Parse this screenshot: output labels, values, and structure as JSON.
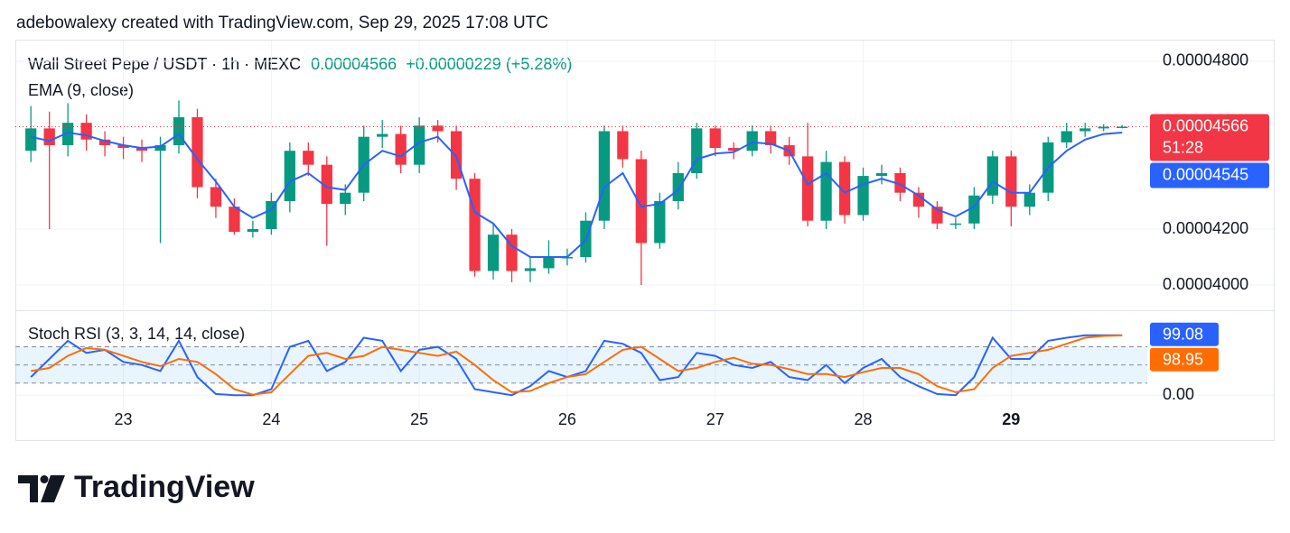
{
  "attribution": "adebowalexy created with TradingView.com, Sep 29, 2025 17:08 UTC",
  "chart_data": [
    {
      "type": "candlestick",
      "title": "Wall Street Pepe / USDT · 1h · MEXC",
      "price": "0.00004566",
      "change": "+0.00000229 (+5.28%)",
      "up_color": "#089981",
      "down_color": "#f23645",
      "x": [
        22.375,
        22.5,
        22.625,
        22.75,
        22.875,
        23,
        23.125,
        23.25,
        23.375,
        23.5,
        23.625,
        23.75,
        23.875,
        24,
        24.125,
        24.25,
        24.375,
        24.5,
        24.625,
        24.75,
        24.875,
        25,
        25.125,
        25.25,
        25.375,
        25.5,
        25.625,
        25.75,
        25.875,
        26,
        26.125,
        26.25,
        26.375,
        26.5,
        26.625,
        26.75,
        26.875,
        27,
        27.125,
        27.25,
        27.375,
        27.5,
        27.625,
        27.75,
        27.875,
        28,
        28.125,
        28.25,
        28.375,
        28.5,
        28.625,
        28.75,
        28.875,
        29,
        29.125,
        29.25,
        29.375,
        29.5,
        29.625,
        29.75
      ],
      "open": [
        4.48e-05,
        4.56e-05,
        4.5e-05,
        4.58e-05,
        4.52e-05,
        4.5e-05,
        4.49e-05,
        4.48e-05,
        4.5e-05,
        4.6e-05,
        4.35e-05,
        4.28e-05,
        4.19e-05,
        4.2e-05,
        4.3e-05,
        4.48e-05,
        4.43e-05,
        4.29e-05,
        4.33e-05,
        4.53e-05,
        4.54e-05,
        4.43e-05,
        4.57e-05,
        4.55e-05,
        4.38e-05,
        4.05e-05,
        4.18e-05,
        4.05e-05,
        4.06e-05,
        4.1e-05,
        4.1e-05,
        4.23e-05,
        4.55e-05,
        4.45e-05,
        4.15e-05,
        4.3e-05,
        4.4e-05,
        4.56e-05,
        4.49e-05,
        4.48e-05,
        4.55e-05,
        4.5e-05,
        4.46e-05,
        4.23e-05,
        4.44e-05,
        4.25e-05,
        4.39e-05,
        4.4e-05,
        4.33e-05,
        4.28e-05,
        4.22e-05,
        4.22e-05,
        4.32e-05,
        4.46e-05,
        4.28e-05,
        4.33e-05,
        4.51e-05,
        4.55e-05,
        4.56e-05,
        4.566e-05
      ],
      "high": [
        4.64e-05,
        4.62e-05,
        4.65e-05,
        4.61e-05,
        4.55e-05,
        4.53e-05,
        4.52e-05,
        4.53e-05,
        4.66e-05,
        4.63e-05,
        4.38e-05,
        4.31e-05,
        4.23e-05,
        4.33e-05,
        4.51e-05,
        4.51e-05,
        4.46e-05,
        4.36e-05,
        4.57e-05,
        4.59e-05,
        4.57e-05,
        4.6e-05,
        4.59e-05,
        4.57e-05,
        4.4e-05,
        4.22e-05,
        4.2e-05,
        4.1e-05,
        4.16e-05,
        4.13e-05,
        4.26e-05,
        4.57e-05,
        4.57e-05,
        4.48e-05,
        4.33e-05,
        4.44e-05,
        4.58e-05,
        4.57e-05,
        4.51e-05,
        4.57e-05,
        4.57e-05,
        4.53e-05,
        4.58e-05,
        4.48e-05,
        4.46e-05,
        4.42e-05,
        4.43e-05,
        4.42e-05,
        4.35e-05,
        4.3e-05,
        4.24e-05,
        4.35e-05,
        4.48e-05,
        4.48e-05,
        4.36e-05,
        4.53e-05,
        4.58e-05,
        4.58e-05,
        4.575e-05,
        4.572e-05
      ],
      "low": [
        4.44e-05,
        4.2e-05,
        4.46e-05,
        4.48e-05,
        4.46e-05,
        4.45e-05,
        4.44e-05,
        4.15e-05,
        4.47e-05,
        4.31e-05,
        4.24e-05,
        4.18e-05,
        4.17e-05,
        4.18e-05,
        4.26e-05,
        4.39e-05,
        4.14e-05,
        4.25e-05,
        4.3e-05,
        4.49e-05,
        4.4e-05,
        4.4e-05,
        4.51e-05,
        4.34e-05,
        4.03e-05,
        4.02e-05,
        4.01e-05,
        4.01e-05,
        4.04e-05,
        4.07e-05,
        4.08e-05,
        4.2e-05,
        4.42e-05,
        4e-05,
        4.13e-05,
        4.27e-05,
        4.38e-05,
        4.46e-05,
        4.45e-05,
        4.46e-05,
        4.47e-05,
        4.43e-05,
        4.21e-05,
        4.2e-05,
        4.22e-05,
        4.23e-05,
        4.36e-05,
        4.3e-05,
        4.24e-05,
        4.2e-05,
        4.2e-05,
        4.2e-05,
        4.29e-05,
        4.21e-05,
        4.25e-05,
        4.3e-05,
        4.49e-05,
        4.53e-05,
        4.55e-05,
        4.56e-05
      ],
      "close": [
        4.56e-05,
        4.5e-05,
        4.58e-05,
        4.52e-05,
        4.5e-05,
        4.49e-05,
        4.48e-05,
        4.5e-05,
        4.6e-05,
        4.35e-05,
        4.28e-05,
        4.19e-05,
        4.2e-05,
        4.3e-05,
        4.48e-05,
        4.43e-05,
        4.29e-05,
        4.33e-05,
        4.53e-05,
        4.54e-05,
        4.43e-05,
        4.57e-05,
        4.55e-05,
        4.38e-05,
        4.05e-05,
        4.18e-05,
        4.05e-05,
        4.06e-05,
        4.1e-05,
        4.1e-05,
        4.23e-05,
        4.55e-05,
        4.45e-05,
        4.15e-05,
        4.3e-05,
        4.4e-05,
        4.56e-05,
        4.49e-05,
        4.48e-05,
        4.55e-05,
        4.5e-05,
        4.46e-05,
        4.23e-05,
        4.44e-05,
        4.25e-05,
        4.39e-05,
        4.4e-05,
        4.33e-05,
        4.28e-05,
        4.22e-05,
        4.22e-05,
        4.32e-05,
        4.46e-05,
        4.28e-05,
        4.33e-05,
        4.51e-05,
        4.55e-05,
        4.56e-05,
        4.566e-05,
        4.566e-05
      ],
      "series": [
        {
          "name": "EMA (9, close)",
          "color": "#2962ff",
          "values": [
            4.53e-05,
            4.515e-05,
            4.545e-05,
            4.535e-05,
            4.515e-05,
            4.5e-05,
            4.49e-05,
            4.495e-05,
            4.54e-05,
            4.45e-05,
            4.37e-05,
            4.28e-05,
            4.24e-05,
            4.27e-05,
            4.37e-05,
            4.4e-05,
            4.35e-05,
            4.34e-05,
            4.43e-05,
            4.48e-05,
            4.46e-05,
            4.51e-05,
            4.53e-05,
            4.46e-05,
            4.26e-05,
            4.22e-05,
            4.14e-05,
            4.1e-05,
            4.1e-05,
            4.1e-05,
            4.16e-05,
            4.35e-05,
            4.4e-05,
            4.28e-05,
            4.29e-05,
            4.34e-05,
            4.45e-05,
            4.47e-05,
            4.475e-05,
            4.51e-05,
            4.505e-05,
            4.48e-05,
            4.36e-05,
            4.4e-05,
            4.33e-05,
            4.36e-05,
            4.38e-05,
            4.36e-05,
            4.32e-05,
            4.27e-05,
            4.245e-05,
            4.28e-05,
            4.37e-05,
            4.33e-05,
            4.33e-05,
            4.42e-05,
            4.48e-05,
            4.52e-05,
            4.54e-05,
            4.545e-05
          ]
        }
      ],
      "price_labels": [
        {
          "value": 4.566e-05,
          "label": "0.00004566",
          "countdown": "51:28",
          "color": "#f23645"
        },
        {
          "value": 4.545e-05,
          "label": "0.00004545",
          "color": "#2962ff"
        }
      ],
      "xlim": [
        22.27,
        29.92
      ],
      "ylim": [
        3.913e-05,
        4.874e-05
      ],
      "yticks": [
        {
          "value": 4.8e-05,
          "label": "0.00004800"
        },
        {
          "value": 4.2e-05,
          "label": "0.00004200"
        },
        {
          "value": 4e-05,
          "label": "0.00004000"
        }
      ],
      "grid": true
    },
    {
      "type": "line",
      "title": "Stoch RSI (3, 3, 14, 14, close)",
      "x": [
        22.375,
        22.5,
        22.625,
        22.75,
        22.875,
        23,
        23.125,
        23.25,
        23.375,
        23.5,
        23.625,
        23.75,
        23.875,
        24,
        24.125,
        24.25,
        24.375,
        24.5,
        24.625,
        24.75,
        24.875,
        25,
        25.125,
        25.25,
        25.375,
        25.5,
        25.625,
        25.75,
        25.875,
        26,
        26.125,
        26.25,
        26.375,
        26.5,
        26.625,
        26.75,
        26.875,
        27,
        27.125,
        27.25,
        27.375,
        27.5,
        27.625,
        27.75,
        27.875,
        28,
        28.125,
        28.25,
        28.375,
        28.5,
        28.625,
        28.75,
        28.875,
        29,
        29.125,
        29.25,
        29.375,
        29.5,
        29.625,
        29.75
      ],
      "series": [
        {
          "color": "#2962ff",
          "values": [
            30,
            60,
            90,
            70,
            75,
            55,
            50,
            40,
            90,
            30,
            2,
            0,
            0,
            10,
            80,
            90,
            40,
            55,
            95,
            90,
            40,
            75,
            80,
            60,
            10,
            5,
            0,
            15,
            40,
            30,
            40,
            90,
            85,
            70,
            25,
            30,
            70,
            65,
            50,
            45,
            55,
            30,
            25,
            50,
            20,
            45,
            60,
            30,
            15,
            2,
            0,
            30,
            95,
            60,
            60,
            90,
            95,
            99,
            99,
            99.08
          ]
        },
        {
          "color": "#ff6d00",
          "values": [
            40,
            45,
            65,
            78,
            75,
            65,
            55,
            48,
            60,
            55,
            35,
            10,
            1,
            5,
            35,
            65,
            70,
            60,
            65,
            80,
            75,
            70,
            65,
            72,
            50,
            25,
            5,
            7,
            20,
            30,
            35,
            55,
            75,
            80,
            60,
            40,
            45,
            55,
            62,
            52,
            50,
            43,
            35,
            35,
            30,
            38,
            45,
            45,
            35,
            15,
            5,
            10,
            45,
            65,
            70,
            75,
            85,
            95,
            98,
            98.95
          ]
        }
      ],
      "last_labels": [
        {
          "value": 99.08,
          "label": "99.08",
          "color": "#2962ff"
        },
        {
          "value": 98.95,
          "label": "98.95",
          "color": "#ff6d00"
        }
      ],
      "levels": [
        80,
        50,
        20
      ],
      "xlim": [
        22.27,
        29.92
      ],
      "xticks": [
        23,
        24,
        25,
        26,
        27,
        28,
        29
      ],
      "ylim": [
        -25,
        139
      ],
      "yticks": [
        {
          "value": 0,
          "label": "0.00"
        }
      ],
      "grid": true
    }
  ],
  "footer": {
    "logo": "TradingView"
  }
}
